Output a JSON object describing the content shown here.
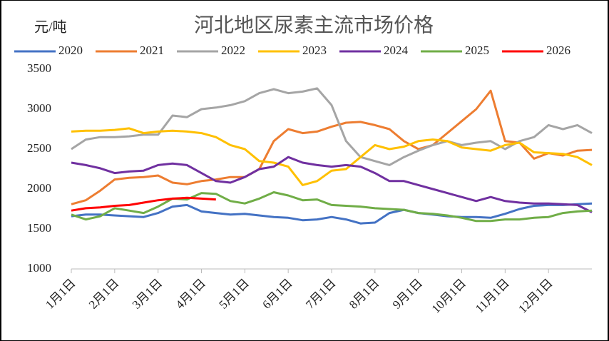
{
  "chart_data": {
    "type": "line",
    "title": "河北地区尿素主流市场价格",
    "y_label": "元/吨",
    "categories": [
      "1月1日",
      null,
      null,
      "2月1日",
      null,
      null,
      "3月1日",
      null,
      null,
      "4月1日",
      null,
      null,
      "5月1日",
      null,
      null,
      "6月1日",
      null,
      null,
      "7月1日",
      null,
      null,
      "8月1日",
      null,
      null,
      "9月1日",
      null,
      null,
      "10月1日",
      null,
      null,
      "11月1日",
      null,
      null,
      "12月1日",
      null,
      null,
      null
    ],
    "ylim": [
      1000,
      3500
    ],
    "yticks": [
      1000,
      1500,
      2000,
      2500,
      3000,
      3500
    ],
    "grid": false,
    "series": [
      {
        "name": "2020",
        "color": "#4472c4",
        "values": [
          1660,
          1680,
          1680,
          1670,
          1660,
          1650,
          1700,
          1780,
          1800,
          1720,
          1700,
          1680,
          1690,
          1670,
          1650,
          1640,
          1610,
          1620,
          1650,
          1620,
          1570,
          1580,
          1700,
          1740,
          1700,
          1680,
          1660,
          1650,
          1650,
          1640,
          1690,
          1750,
          1790,
          1800,
          1800,
          1810,
          1820
        ]
      },
      {
        "name": "2021",
        "color": "#ed7d31",
        "values": [
          1810,
          1860,
          1980,
          2120,
          2140,
          2150,
          2170,
          2080,
          2060,
          2100,
          2120,
          2150,
          2150,
          2250,
          2600,
          2750,
          2700,
          2720,
          2780,
          2830,
          2840,
          2800,
          2750,
          2600,
          2500,
          2550,
          2700,
          2850,
          3000,
          3230,
          2600,
          2580,
          2380,
          2450,
          2420,
          2480,
          2490
        ]
      },
      {
        "name": "2022",
        "color": "#a5a5a5",
        "values": [
          2500,
          2620,
          2650,
          2650,
          2660,
          2680,
          2680,
          2920,
          2900,
          3000,
          3020,
          3050,
          3100,
          3200,
          3250,
          3200,
          3220,
          3260,
          3050,
          2600,
          2400,
          2350,
          2300,
          2400,
          2480,
          2550,
          2600,
          2550,
          2580,
          2600,
          2500,
          2600,
          2650,
          2800,
          2750,
          2800,
          2700
        ]
      },
      {
        "name": "2023",
        "color": "#ffc000",
        "values": [
          2720,
          2730,
          2730,
          2740,
          2760,
          2700,
          2720,
          2730,
          2720,
          2700,
          2650,
          2550,
          2500,
          2350,
          2330,
          2280,
          2050,
          2100,
          2230,
          2250,
          2400,
          2550,
          2500,
          2530,
          2600,
          2620,
          2600,
          2520,
          2500,
          2480,
          2550,
          2580,
          2460,
          2450,
          2440,
          2400,
          2300
        ]
      },
      {
        "name": "2024",
        "color": "#7030a0",
        "values": [
          2330,
          2300,
          2260,
          2200,
          2220,
          2230,
          2300,
          2320,
          2300,
          2200,
          2100,
          2080,
          2150,
          2250,
          2280,
          2400,
          2330,
          2300,
          2280,
          2300,
          2280,
          2200,
          2100,
          2100,
          2050,
          2000,
          1950,
          1900,
          1850,
          1900,
          1850,
          1830,
          1820,
          1820,
          1810,
          1800,
          1710
        ]
      },
      {
        "name": "2025",
        "color": "#70ad47",
        "values": [
          1680,
          1620,
          1660,
          1760,
          1730,
          1700,
          1780,
          1880,
          1870,
          1950,
          1940,
          1850,
          1820,
          1880,
          1960,
          1920,
          1860,
          1870,
          1800,
          1790,
          1780,
          1760,
          1750,
          1740,
          1700,
          1690,
          1670,
          1640,
          1600,
          1600,
          1620,
          1620,
          1640,
          1650,
          1700,
          1720,
          1730
        ]
      },
      {
        "name": "2026",
        "color": "#ff0000",
        "values": [
          1730,
          1760,
          1770,
          1790,
          1800,
          1830,
          1860,
          1880,
          1890,
          1880,
          1870,
          null,
          null,
          null,
          null,
          null,
          null,
          null,
          null,
          null,
          null,
          null,
          null,
          null,
          null,
          null,
          null,
          null,
          null,
          null,
          null,
          null,
          null,
          null,
          null,
          null,
          null
        ]
      }
    ]
  }
}
